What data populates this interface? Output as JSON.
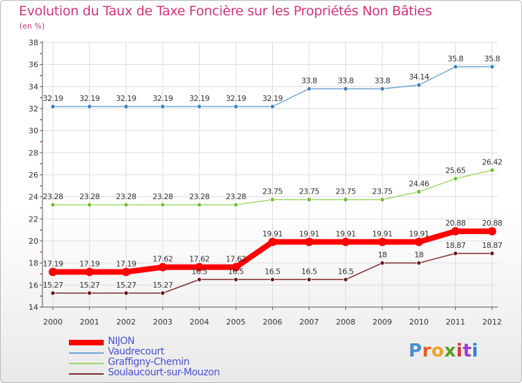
{
  "title": "Evolution du Taux de Taxe Foncière sur les Propriétés Non Bâties",
  "unit_label": "(en %)",
  "brand": {
    "name": "Proxiti",
    "letters": [
      "P",
      "r",
      "o",
      "x",
      "i",
      "t",
      "i"
    ],
    "colors": [
      "#4b8ed1",
      "#e85b1f",
      "#f0a22b",
      "#5b9e2b",
      "#d83b2a",
      "#9c3ad0",
      "#2f7fd8"
    ]
  },
  "colors": {
    "title": "#d6337a",
    "axis": "#555555",
    "tick_red": "#cc0000",
    "grid": "#dddddd"
  },
  "chart_data": {
    "type": "line",
    "title": "Evolution du Taux de Taxe Foncière sur les Propriétés Non Bâties",
    "ylabel": "(en %)",
    "xlabel": "",
    "ylim": [
      14,
      38
    ],
    "yticks": [
      14,
      16,
      18,
      20,
      22,
      24,
      26,
      28,
      30,
      32,
      34,
      36,
      38
    ],
    "categories": [
      "2000",
      "2001",
      "2002",
      "2003",
      "2004",
      "2005",
      "2006",
      "2007",
      "2008",
      "2009",
      "2010",
      "2011",
      "2012"
    ],
    "series": [
      {
        "name": "Vaudrecourt",
        "color": "#6fa3d6",
        "marker": "#3a7fc4",
        "values": [
          32.19,
          32.19,
          32.19,
          32.19,
          32.19,
          32.19,
          32.19,
          33.8,
          33.8,
          33.8,
          34.14,
          35.8,
          35.8
        ],
        "labels": [
          "32.19",
          "32.19",
          "32.19",
          "32.19",
          "32.19",
          "32.19",
          "32.19",
          "33.8",
          "33.8",
          "33.8",
          "34.14",
          "35.8",
          "35.8"
        ]
      },
      {
        "name": "Graffigny-Chemin",
        "color": "#9fd86b",
        "marker": "#6cbf2c",
        "values": [
          23.28,
          23.28,
          23.28,
          23.28,
          23.28,
          23.28,
          23.75,
          23.75,
          23.75,
          23.75,
          24.46,
          25.65,
          26.42
        ],
        "labels": [
          "23.28",
          "23.28",
          "23.28",
          "23.28",
          "23.28",
          "23.28",
          "23.75",
          "23.75",
          "23.75",
          "23.75",
          "24.46",
          "25.65",
          "26.42"
        ]
      },
      {
        "name": "NIJON",
        "color": "#ff0000",
        "marker": "#ff0000",
        "values": [
          17.19,
          17.19,
          17.19,
          17.62,
          17.62,
          17.62,
          19.91,
          19.91,
          19.91,
          19.91,
          19.91,
          20.88,
          20.88
        ],
        "labels": [
          "17.19",
          "17.19",
          "17.19",
          "17.62",
          "17.62",
          "17.62",
          "19.91",
          "19.91",
          "19.91",
          "19.91",
          "19.91",
          "20.88",
          "20.88"
        ]
      },
      {
        "name": "Soulaucourt-sur-Mouzon",
        "color": "#7a2a2a",
        "marker": "#6b1515",
        "values": [
          15.27,
          15.27,
          15.27,
          15.27,
          16.5,
          16.5,
          16.5,
          16.5,
          16.5,
          18,
          18,
          18.87,
          18.87
        ],
        "labels": [
          "15.27",
          "15.27",
          "15.27",
          "15.27",
          "16.5",
          "16.5",
          "16.5",
          "16.5",
          "16.5",
          "18",
          "18",
          "18.87",
          "18.87"
        ]
      }
    ],
    "legend": [
      {
        "name": "NIJON",
        "color": "#ff0000"
      },
      {
        "name": "Vaudrecourt",
        "color": "#6fa3d6"
      },
      {
        "name": "Graffigny-Chemin",
        "color": "#9fd86b"
      },
      {
        "name": "Soulaucourt-sur-Mouzon",
        "color": "#7a2a2a"
      }
    ]
  }
}
